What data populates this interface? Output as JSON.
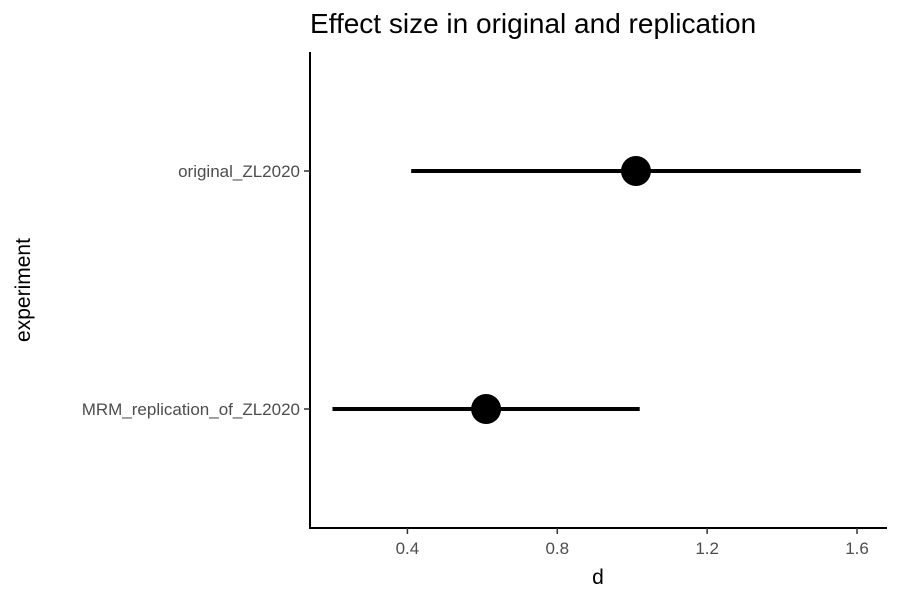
{
  "chart_data": {
    "type": "scatter",
    "title": "Effect size in original and replication",
    "xlabel": "d",
    "ylabel": "experiment",
    "xlim": [
      0.14,
      1.68
    ],
    "x_ticks": [
      0.4,
      0.8,
      1.2,
      1.6
    ],
    "x_tick_labels": [
      "0.4",
      "0.8",
      "1.2",
      "1.6"
    ],
    "categories": [
      "original_ZL2020",
      "MRM_replication_of_ZL2020"
    ],
    "points": [
      {
        "experiment": "original_ZL2020",
        "d": 1.01,
        "ci_low": 0.41,
        "ci_high": 1.61
      },
      {
        "experiment": "MRM_replication_of_ZL2020",
        "d": 0.61,
        "ci_low": 0.2,
        "ci_high": 1.02
      }
    ],
    "grid": false,
    "legend": "none",
    "colors": {
      "mark": "#000000",
      "axis": "#000000",
      "tick_label": "#4d4d4d",
      "background": "#ffffff"
    }
  }
}
